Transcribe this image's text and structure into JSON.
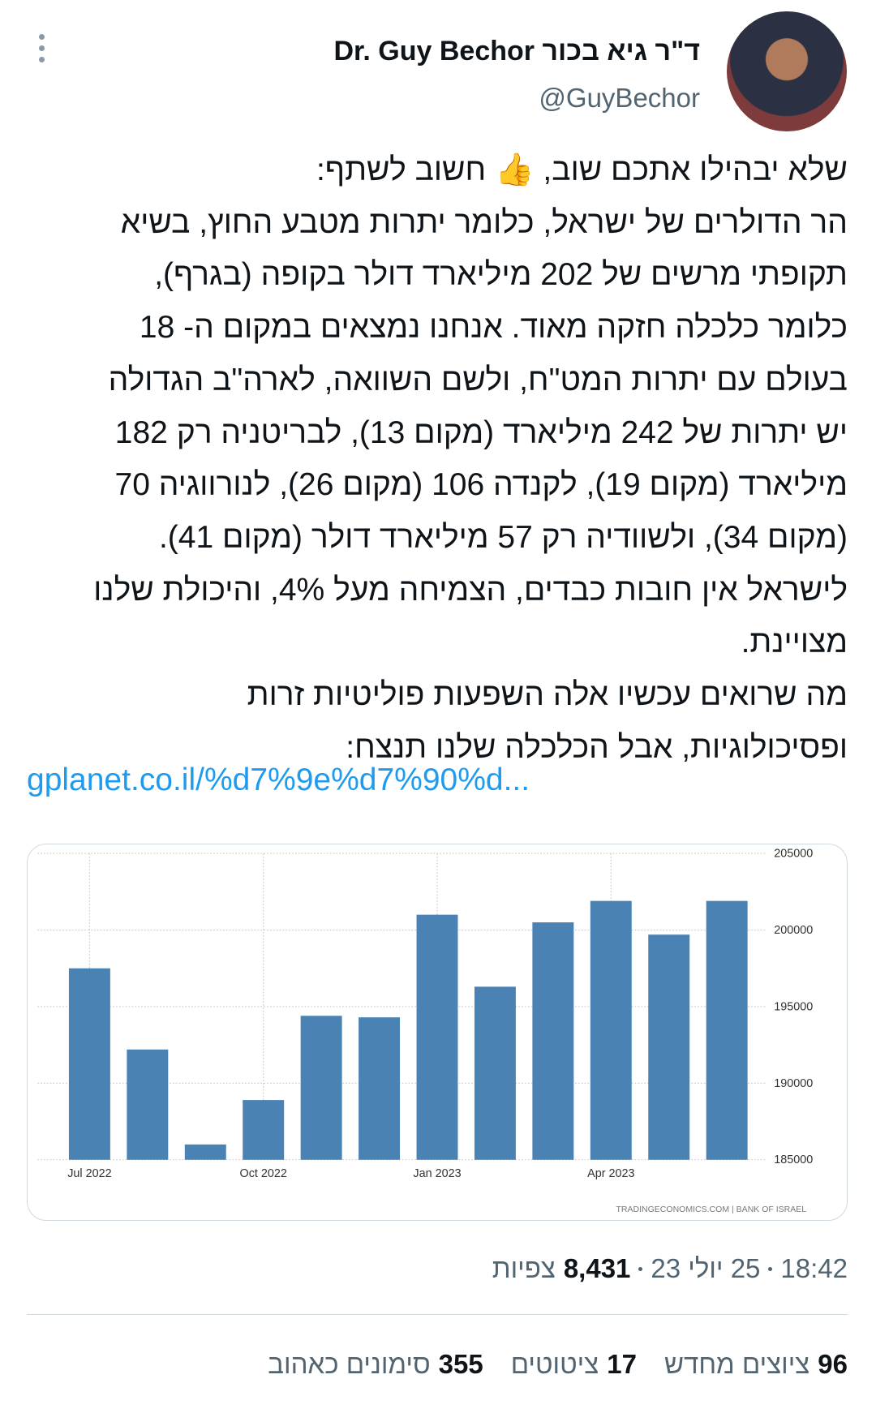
{
  "author": {
    "name": "ד\"ר גיא בכור Dr. Guy Bechor",
    "handle": "@GuyBechor"
  },
  "tweet": {
    "lines": [
      "שלא יבהילו אתכם שוב, 👍 חשוב לשתף:",
      "הר הדולרים של ישראל, כלומר יתרות מטבע החוץ, בשיא",
      "תקופתי מרשים של 202 מיליארד דולר בקופה (בגרף),",
      "כלומר כלכלה חזקה מאוד. אנחנו נמצאים במקום ה- 18",
      "בעולם עם יתרות המט\"ח, ולשם השוואה, לארה\"ב הגדולה",
      "יש יתרות של 242 מיליארד (מקום 13), לבריטניה רק 182",
      "מיליארד (מקום 19), לקנדה 106 (מקום 26), לנורווגיה 70",
      "(מקום 34), ולשוודיה רק 57 מיליארד דולר (מקום 41).",
      "לישראל אין חובות כבדים, הצמיחה מעל 4%, והיכולת שלנו",
      "מצויינת.",
      "מה שרואים עכשיו אלה השפעות פוליטיות זרות",
      "ופסיכולוגיות, אבל הכלכלה שלנו תנצח:"
    ],
    "link": "gplanet.co.il/%d7%9e%d7%90%d..."
  },
  "chart_data": {
    "type": "bar",
    "categories": [
      "Jul 2022",
      null,
      null,
      "Oct 2022",
      null,
      null,
      "Jan 2023",
      null,
      null,
      "Apr 2023",
      null,
      null
    ],
    "values": [
      197500,
      192200,
      186000,
      188900,
      194400,
      194300,
      201000,
      196300,
      200500,
      201900,
      199700,
      201900
    ],
    "color": "#4a82b4",
    "ylim": [
      185000,
      205000
    ],
    "yticks": [
      185000,
      190000,
      195000,
      200000,
      205000
    ],
    "grid": true,
    "source": "TRADINGECONOMICS.COM  |  BANK OF ISRAEL"
  },
  "footer": {
    "time": "18:42",
    "date": "25 יולי 23",
    "views": "8,431",
    "views_label": "צפיות"
  },
  "stats": [
    {
      "count": "96",
      "label": "ציוצים מחדש"
    },
    {
      "count": "17",
      "label": "ציטוטים"
    },
    {
      "count": "355",
      "label": "סימונים כאהוב"
    }
  ]
}
